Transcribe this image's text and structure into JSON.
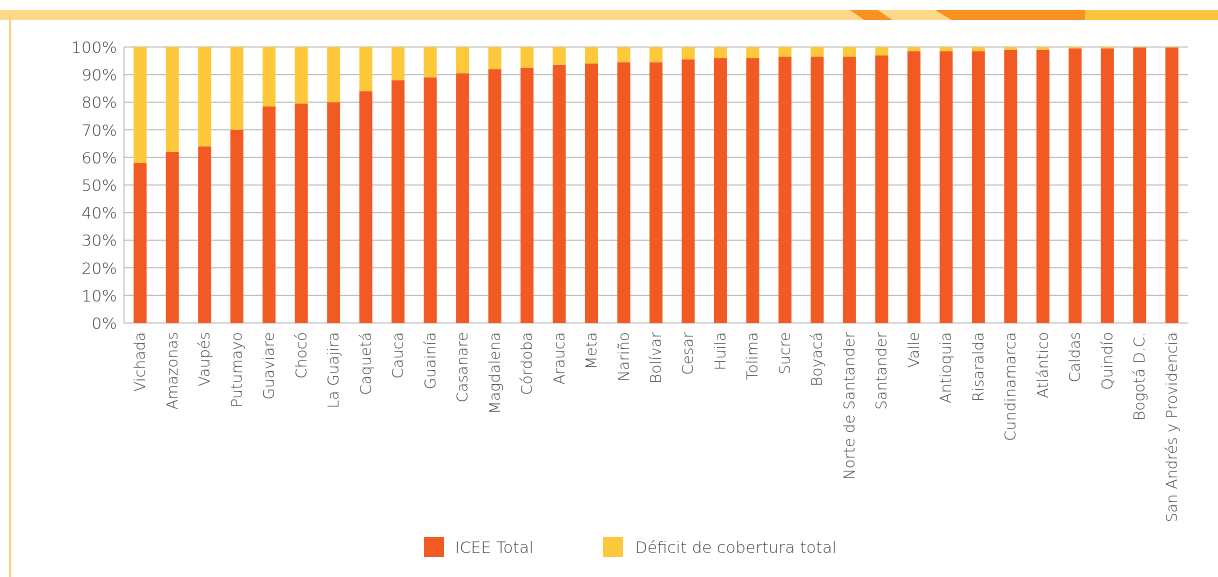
{
  "colors": {
    "icee": "#f15a22",
    "deficit": "#fdc93a",
    "grid": "#b5b5b5",
    "band_light": "#fdd98a",
    "band_orange": "#f7931e",
    "band_yellow": "#fcc33c"
  },
  "chart_data": {
    "type": "bar",
    "stacked": true,
    "percent_axis": true,
    "ylim": [
      0,
      100
    ],
    "yticks": [
      "0%",
      "10%",
      "20%",
      "30%",
      "40%",
      "50%",
      "60%",
      "70%",
      "80%",
      "90%",
      "100%"
    ],
    "grid": true,
    "legend_position": "bottom",
    "categories": [
      "Vichada",
      "Amazonas",
      "Vaupés",
      "Putumayo",
      "Guaviare",
      "Chocó",
      "La Guajira",
      "Caquetá",
      "Cauca",
      "Guainía",
      "Casanare",
      "Magdalena",
      "Córdoba",
      "Arauca",
      "Meta",
      "Nariño",
      "Bolívar",
      "Cesar",
      "Huila",
      "Tolima",
      "Sucre",
      "Boyacá",
      "Norte de Santander",
      "Santander",
      "Valle",
      "Antioquia",
      "Risaralda",
      "Cundinamarca",
      "Atlántico",
      "Caldas",
      "Quindío",
      "Bogotá D.C.",
      "San Andrés y Providencia"
    ],
    "series": [
      {
        "name": "ICEE Total",
        "values": [
          58,
          62,
          64,
          70,
          78.5,
          79.5,
          80,
          84,
          88,
          89,
          90.5,
          92,
          92.5,
          93.5,
          94,
          94.5,
          94.5,
          95.5,
          96,
          96,
          96.5,
          96.5,
          96.5,
          97,
          98.5,
          98.5,
          98.5,
          99,
          99,
          99.5,
          99.5,
          99.8,
          99.8
        ]
      },
      {
        "name": "Déficit de cobertura total",
        "values": [
          42,
          38,
          36,
          30,
          21.5,
          20.5,
          20,
          16,
          12,
          11,
          9.5,
          8,
          7.5,
          6.5,
          6,
          5.5,
          5.5,
          4.5,
          4,
          4,
          3.5,
          3.5,
          3.5,
          3,
          1.5,
          1.5,
          1.5,
          1,
          1,
          0.5,
          0.5,
          0.2,
          0.2
        ]
      }
    ]
  }
}
